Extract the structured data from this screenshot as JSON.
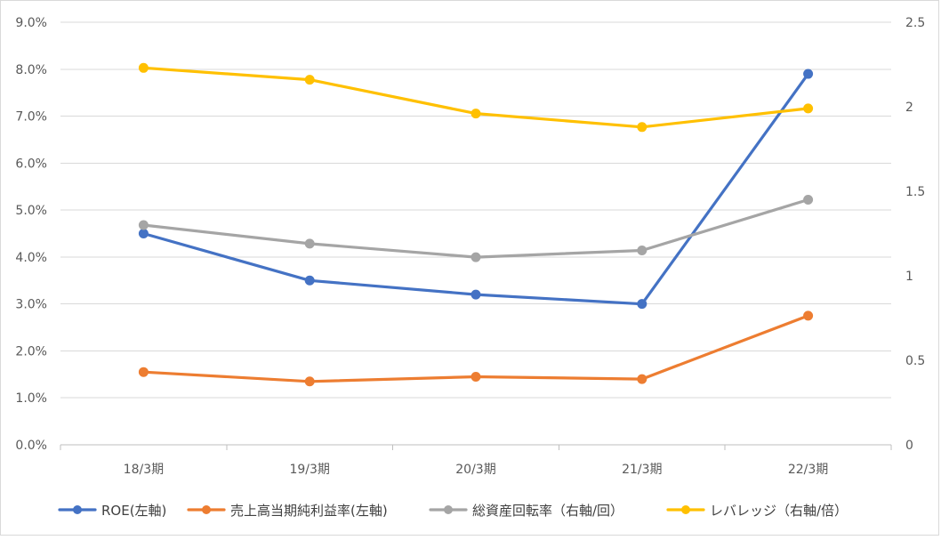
{
  "chart_data": {
    "type": "line",
    "categories": [
      "18/3期",
      "19/3期",
      "20/3期",
      "21/3期",
      "22/3期"
    ],
    "y_left": {
      "range": [
        0,
        0.09
      ],
      "ticks": [
        0,
        0.01,
        0.02,
        0.03,
        0.04,
        0.05,
        0.06,
        0.07,
        0.08,
        0.09
      ],
      "tick_labels": [
        "0.0%",
        "1.0%",
        "2.0%",
        "3.0%",
        "4.0%",
        "5.0%",
        "6.0%",
        "7.0%",
        "8.0%",
        "9.0%"
      ]
    },
    "y_right": {
      "range": [
        0,
        2.5
      ],
      "ticks": [
        0,
        0.5,
        1,
        1.5,
        2,
        2.5
      ],
      "tick_labels": [
        "0",
        "0.5",
        "1",
        "1.5",
        "2",
        "2.5"
      ]
    },
    "grid": true,
    "legend_position": "bottom",
    "series": [
      {
        "name": "ROE(左軸)",
        "axis": "left",
        "color": "#4472c4",
        "values": [
          0.045,
          0.035,
          0.032,
          0.03,
          0.079
        ]
      },
      {
        "name": "売上高当期純利益率(左軸)",
        "axis": "left",
        "color": "#ed7d31",
        "values": [
          0.0155,
          0.0135,
          0.0145,
          0.014,
          0.0275
        ]
      },
      {
        "name": "総資産回転率（右軸/回）",
        "axis": "right",
        "color": "#a5a5a5",
        "values": [
          1.3,
          1.19,
          1.11,
          1.15,
          1.45
        ]
      },
      {
        "name": "レバレッジ（右軸/倍）",
        "axis": "right",
        "color": "#ffc000",
        "values": [
          2.23,
          2.16,
          1.96,
          1.88,
          1.99
        ]
      }
    ]
  }
}
